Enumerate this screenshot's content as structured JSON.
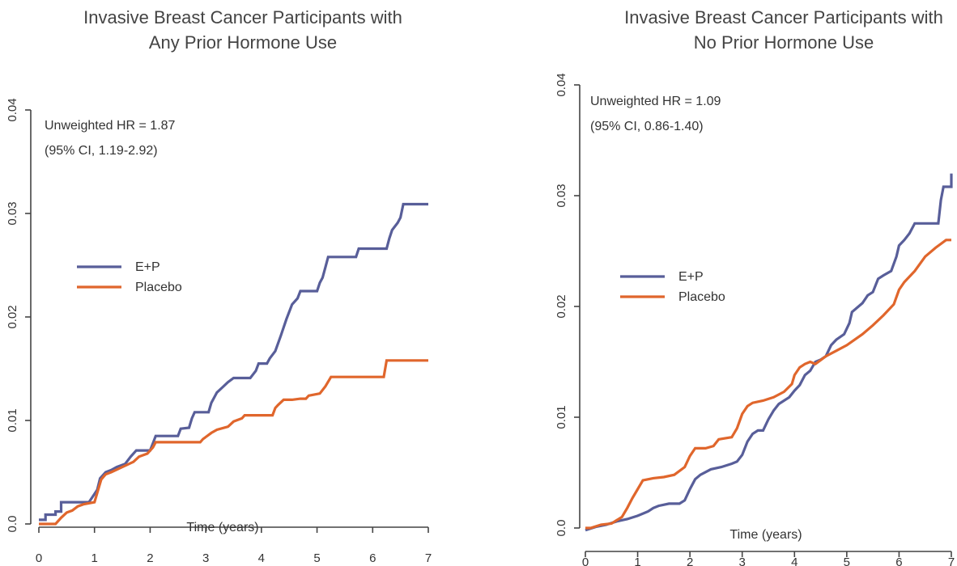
{
  "colors": {
    "ep": "#585e99",
    "placebo": "#e0662c",
    "axis": "#444444"
  },
  "chart_data": [
    {
      "type": "line",
      "title": [
        "Invasive Breast Cancer Participants with",
        "Any Prior Hormone Use"
      ],
      "xlabel": "Time (years)",
      "ylabel": "",
      "xlim": [
        0,
        7
      ],
      "ylim": [
        0,
        0.04
      ],
      "x_ticks": [
        "0",
        "1",
        "2",
        "3",
        "4",
        "5",
        "6",
        "7"
      ],
      "y_ticks": [
        "0.0",
        "0.01",
        "0.02",
        "0.03",
        "0.04"
      ],
      "legend": "center-left",
      "annotation": [
        "Unweighted HR = 1.87",
        "(95% CI, 1.19-2.92)"
      ],
      "series": [
        {
          "name": "E+P",
          "color": "#585e99",
          "points": [
            [
              0,
              0.0004
            ],
            [
              0.12,
              0.0004
            ],
            [
              0.12,
              0.0009
            ],
            [
              0.3,
              0.0009
            ],
            [
              0.3,
              0.0012
            ],
            [
              0.4,
              0.0012
            ],
            [
              0.4,
              0.0021
            ],
            [
              0.9,
              0.0021
            ],
            [
              0.95,
              0.0025
            ],
            [
              1.05,
              0.0033
            ],
            [
              1.1,
              0.0044
            ],
            [
              1.2,
              0.005
            ],
            [
              1.3,
              0.0052
            ],
            [
              1.4,
              0.0055
            ],
            [
              1.55,
              0.0058
            ],
            [
              1.65,
              0.0065
            ],
            [
              1.75,
              0.0071
            ],
            [
              2.0,
              0.0071
            ],
            [
              2.05,
              0.0078
            ],
            [
              2.1,
              0.0085
            ],
            [
              2.5,
              0.0085
            ],
            [
              2.55,
              0.0092
            ],
            [
              2.7,
              0.0093
            ],
            [
              2.75,
              0.0102
            ],
            [
              2.8,
              0.0108
            ],
            [
              3.05,
              0.0108
            ],
            [
              3.1,
              0.0117
            ],
            [
              3.2,
              0.0127
            ],
            [
              3.3,
              0.0132
            ],
            [
              3.4,
              0.0137
            ],
            [
              3.5,
              0.0141
            ],
            [
              3.8,
              0.0141
            ],
            [
              3.9,
              0.0148
            ],
            [
              3.95,
              0.0155
            ],
            [
              4.1,
              0.0155
            ],
            [
              4.15,
              0.016
            ],
            [
              4.25,
              0.0167
            ],
            [
              4.35,
              0.0182
            ],
            [
              4.45,
              0.0198
            ],
            [
              4.55,
              0.0212
            ],
            [
              4.65,
              0.0218
            ],
            [
              4.7,
              0.0225
            ],
            [
              5.0,
              0.0225
            ],
            [
              5.05,
              0.0233
            ],
            [
              5.1,
              0.0238
            ],
            [
              5.15,
              0.0248
            ],
            [
              5.2,
              0.0258
            ],
            [
              5.7,
              0.0258
            ],
            [
              5.75,
              0.0266
            ],
            [
              6.25,
              0.0266
            ],
            [
              6.3,
              0.0276
            ],
            [
              6.35,
              0.0284
            ],
            [
              6.45,
              0.0291
            ],
            [
              6.5,
              0.0296
            ],
            [
              6.55,
              0.0309
            ],
            [
              7.0,
              0.0309
            ]
          ]
        },
        {
          "name": "Placebo",
          "color": "#e0662c",
          "points": [
            [
              0,
              0.0
            ],
            [
              0.3,
              0.0
            ],
            [
              0.4,
              0.0006
            ],
            [
              0.5,
              0.0011
            ],
            [
              0.6,
              0.0013
            ],
            [
              0.7,
              0.0017
            ],
            [
              0.8,
              0.0019
            ],
            [
              1.0,
              0.0021
            ],
            [
              1.05,
              0.003
            ],
            [
              1.12,
              0.0043
            ],
            [
              1.2,
              0.0048
            ],
            [
              1.3,
              0.005
            ],
            [
              1.5,
              0.0055
            ],
            [
              1.7,
              0.006
            ],
            [
              1.8,
              0.0065
            ],
            [
              1.95,
              0.0068
            ],
            [
              2.05,
              0.0074
            ],
            [
              2.1,
              0.0079
            ],
            [
              2.9,
              0.0079
            ],
            [
              2.95,
              0.0082
            ],
            [
              3.1,
              0.0088
            ],
            [
              3.2,
              0.0091
            ],
            [
              3.4,
              0.0094
            ],
            [
              3.5,
              0.0099
            ],
            [
              3.65,
              0.0102
            ],
            [
              3.7,
              0.0105
            ],
            [
              4.2,
              0.0105
            ],
            [
              4.25,
              0.0112
            ],
            [
              4.3,
              0.0115
            ],
            [
              4.4,
              0.012
            ],
            [
              4.55,
              0.012
            ],
            [
              4.7,
              0.0121
            ],
            [
              4.8,
              0.0121
            ],
            [
              4.85,
              0.0124
            ],
            [
              5.05,
              0.0126
            ],
            [
              5.15,
              0.0133
            ],
            [
              5.25,
              0.0142
            ],
            [
              6.2,
              0.0142
            ],
            [
              6.25,
              0.0158
            ],
            [
              7.0,
              0.0158
            ]
          ]
        }
      ]
    },
    {
      "type": "line",
      "title": [
        "Invasive Breast Cancer Participants with",
        "No Prior Hormone Use"
      ],
      "xlabel": "Time (years)",
      "ylabel": "",
      "xlim": [
        0,
        7
      ],
      "ylim": [
        0,
        0.04
      ],
      "x_ticks": [
        "0",
        "1",
        "2",
        "3",
        "4",
        "5",
        "6",
        "7"
      ],
      "y_ticks": [
        "0.0",
        "0.01",
        "0.02",
        "0.03",
        "0.04"
      ],
      "legend": "center-left",
      "annotation": [
        "Unweighted HR = 1.09",
        "(95% CI, 0.86-1.40)"
      ],
      "series": [
        {
          "name": "E+P",
          "color": "#585e99",
          "points": [
            [
              0,
              -0.0002
            ],
            [
              0.2,
              0.0001
            ],
            [
              0.4,
              0.0003
            ],
            [
              0.6,
              0.0006
            ],
            [
              0.8,
              0.0008
            ],
            [
              1.0,
              0.0011
            ],
            [
              1.2,
              0.0015
            ],
            [
              1.3,
              0.0018
            ],
            [
              1.4,
              0.002
            ],
            [
              1.6,
              0.0022
            ],
            [
              1.8,
              0.0022
            ],
            [
              1.9,
              0.0025
            ],
            [
              2.0,
              0.0035
            ],
            [
              2.1,
              0.0044
            ],
            [
              2.2,
              0.0048
            ],
            [
              2.4,
              0.0053
            ],
            [
              2.6,
              0.0055
            ],
            [
              2.8,
              0.0058
            ],
            [
              2.9,
              0.006
            ],
            [
              3.0,
              0.0066
            ],
            [
              3.1,
              0.0078
            ],
            [
              3.2,
              0.0085
            ],
            [
              3.3,
              0.0088
            ],
            [
              3.4,
              0.0088
            ],
            [
              3.5,
              0.0098
            ],
            [
              3.6,
              0.0106
            ],
            [
              3.7,
              0.0112
            ],
            [
              3.9,
              0.0118
            ],
            [
              4.0,
              0.0124
            ],
            [
              4.1,
              0.0129
            ],
            [
              4.2,
              0.0138
            ],
            [
              4.3,
              0.0142
            ],
            [
              4.4,
              0.015
            ],
            [
              4.5,
              0.0152
            ],
            [
              4.6,
              0.0155
            ],
            [
              4.7,
              0.0165
            ],
            [
              4.8,
              0.017
            ],
            [
              4.95,
              0.0175
            ],
            [
              5.05,
              0.0185
            ],
            [
              5.1,
              0.0195
            ],
            [
              5.3,
              0.0203
            ],
            [
              5.4,
              0.021
            ],
            [
              5.5,
              0.0213
            ],
            [
              5.6,
              0.0225
            ],
            [
              5.7,
              0.0228
            ],
            [
              5.85,
              0.0232
            ],
            [
              5.95,
              0.0245
            ],
            [
              6.0,
              0.0255
            ],
            [
              6.1,
              0.026
            ],
            [
              6.2,
              0.0266
            ],
            [
              6.3,
              0.0275
            ],
            [
              6.75,
              0.0275
            ],
            [
              6.8,
              0.0296
            ],
            [
              6.85,
              0.0308
            ],
            [
              7.0,
              0.0308
            ],
            [
              7.0,
              0.032
            ]
          ]
        },
        {
          "name": "Placebo",
          "color": "#e0662c",
          "points": [
            [
              0,
              0.0
            ],
            [
              0.1,
              0.0
            ],
            [
              0.3,
              0.0003
            ],
            [
              0.5,
              0.0004
            ],
            [
              0.6,
              0.0007
            ],
            [
              0.7,
              0.001
            ],
            [
              0.8,
              0.0018
            ],
            [
              0.9,
              0.0027
            ],
            [
              1.0,
              0.0035
            ],
            [
              1.1,
              0.0043
            ],
            [
              1.3,
              0.0045
            ],
            [
              1.5,
              0.0046
            ],
            [
              1.7,
              0.0048
            ],
            [
              1.9,
              0.0055
            ],
            [
              2.0,
              0.0065
            ],
            [
              2.1,
              0.0072
            ],
            [
              2.3,
              0.0072
            ],
            [
              2.45,
              0.0074
            ],
            [
              2.55,
              0.008
            ],
            [
              2.8,
              0.0082
            ],
            [
              2.9,
              0.009
            ],
            [
              3.0,
              0.0103
            ],
            [
              3.1,
              0.011
            ],
            [
              3.2,
              0.0113
            ],
            [
              3.4,
              0.0115
            ],
            [
              3.6,
              0.0118
            ],
            [
              3.8,
              0.0123
            ],
            [
              3.95,
              0.013
            ],
            [
              4.0,
              0.0138
            ],
            [
              4.1,
              0.0145
            ],
            [
              4.2,
              0.0148
            ],
            [
              4.3,
              0.015
            ],
            [
              4.4,
              0.0148
            ],
            [
              4.6,
              0.0155
            ],
            [
              4.8,
              0.016
            ],
            [
              5.0,
              0.0165
            ],
            [
              5.3,
              0.0175
            ],
            [
              5.5,
              0.0183
            ],
            [
              5.7,
              0.0192
            ],
            [
              5.9,
              0.0202
            ],
            [
              6.0,
              0.0215
            ],
            [
              6.1,
              0.0222
            ],
            [
              6.3,
              0.0232
            ],
            [
              6.5,
              0.0245
            ],
            [
              6.7,
              0.0253
            ],
            [
              6.9,
              0.026
            ],
            [
              7.0,
              0.026
            ]
          ]
        }
      ]
    }
  ]
}
